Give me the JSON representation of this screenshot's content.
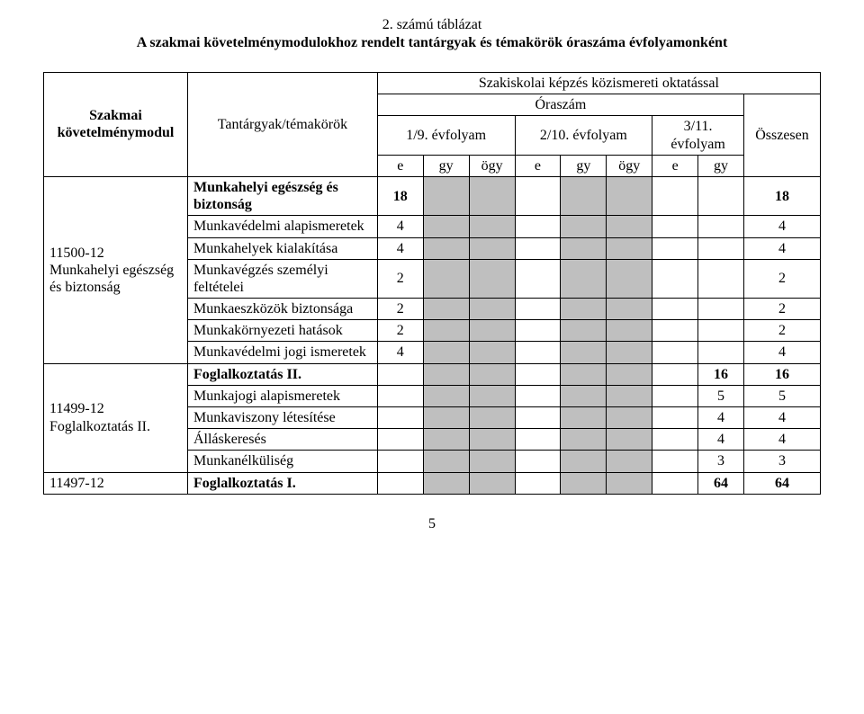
{
  "title": {
    "line1": "2. számú táblázat",
    "line2": "A szakmai követelménymodulokhoz rendelt tantárgyak és témakörök óraszáma évfolyamonként"
  },
  "header": {
    "module_col": "Szakmai követelménymodul",
    "subject_col": "Tantárgyak/témakörök",
    "super_title": "Szakiskolai képzés közismereti oktatással",
    "hours_label": "Óraszám",
    "total_label": "Összesen",
    "years": [
      "1/9. évfolyam",
      "2/10. évfolyam",
      "3/11. évfolyam"
    ],
    "subcols_with_ogy": [
      "e",
      "gy",
      "ögy"
    ],
    "subcols_no_ogy": [
      "e",
      "gy"
    ]
  },
  "shade_color": "#bfbfbf",
  "modules": [
    {
      "module": "11500-12\nMunkahelyi egészség és biztonság",
      "rows": [
        {
          "label": "Munkahelyi egészség és biztonság",
          "bold": true,
          "cells": [
            "18",
            "",
            "",
            "",
            "",
            "",
            "",
            "",
            "18"
          ]
        },
        {
          "label": "Munkavédelmi alapismeretek",
          "bold": false,
          "cells": [
            "4",
            "",
            "",
            "",
            "",
            "",
            "",
            "",
            "4"
          ]
        },
        {
          "label": "Munkahelyek kialakítása",
          "bold": false,
          "cells": [
            "4",
            "",
            "",
            "",
            "",
            "",
            "",
            "",
            "4"
          ]
        },
        {
          "label": "Munkavégzés személyi feltételei",
          "bold": false,
          "cells": [
            "2",
            "",
            "",
            "",
            "",
            "",
            "",
            "",
            "2"
          ]
        },
        {
          "label": "Munkaeszközök biztonsága",
          "bold": false,
          "cells": [
            "2",
            "",
            "",
            "",
            "",
            "",
            "",
            "",
            "2"
          ]
        },
        {
          "label": "Munkakörnyezeti hatások",
          "bold": false,
          "cells": [
            "2",
            "",
            "",
            "",
            "",
            "",
            "",
            "",
            "2"
          ]
        },
        {
          "label": "Munkavédelmi jogi ismeretek",
          "bold": false,
          "cells": [
            "4",
            "",
            "",
            "",
            "",
            "",
            "",
            "",
            "4"
          ]
        }
      ]
    },
    {
      "module": "11499-12\nFoglalkoztatás II.",
      "rows": [
        {
          "label": "Foglalkoztatás II.",
          "bold": true,
          "cells": [
            "",
            "",
            "",
            "",
            "",
            "",
            "",
            "16",
            "16"
          ]
        },
        {
          "label": "Munkajogi alapismeretek",
          "bold": false,
          "cells": [
            "",
            "",
            "",
            "",
            "",
            "",
            "",
            "5",
            "5"
          ]
        },
        {
          "label": "Munkaviszony létesítése",
          "bold": false,
          "cells": [
            "",
            "",
            "",
            "",
            "",
            "",
            "",
            "4",
            "4"
          ]
        },
        {
          "label": "Álláskeresés",
          "bold": false,
          "cells": [
            "",
            "",
            "",
            "",
            "",
            "",
            "",
            "4",
            "4"
          ]
        },
        {
          "label": "Munkanélküliség",
          "bold": false,
          "cells": [
            "",
            "",
            "",
            "",
            "",
            "",
            "",
            "3",
            "3"
          ]
        }
      ]
    },
    {
      "module": "11497-12",
      "rows": [
        {
          "label": "Foglalkoztatás I.",
          "bold": true,
          "cells": [
            "",
            "",
            "",
            "",
            "",
            "",
            "",
            "64",
            "64"
          ]
        }
      ]
    }
  ],
  "shade_columns": [
    false,
    true,
    true,
    false,
    true,
    true,
    false,
    false,
    false
  ],
  "page_number": "5"
}
